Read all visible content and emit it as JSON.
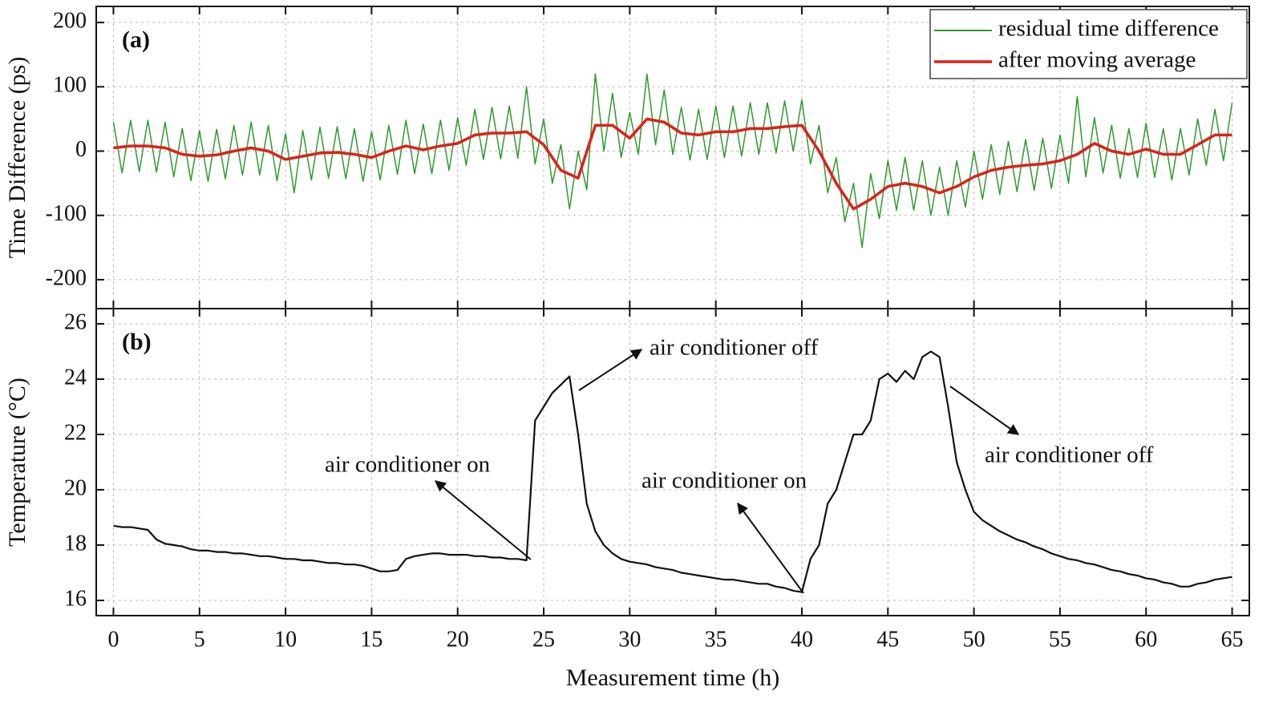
{
  "chart_data": [
    {
      "type": "line",
      "label": "(a)",
      "ylabel": "Time Difference (ps)",
      "xlim": [
        -1,
        66
      ],
      "ylim": [
        -245,
        225
      ],
      "yticks": [
        -200,
        -100,
        0,
        100,
        200
      ],
      "grid": true,
      "legend": "upper right",
      "x": [
        0,
        0.5,
        1,
        1.5,
        2,
        2.5,
        3,
        3.5,
        4,
        4.5,
        5,
        5.5,
        6,
        6.5,
        7,
        7.5,
        8,
        8.5,
        9,
        9.5,
        10,
        10.5,
        11,
        11.5,
        12,
        12.5,
        13,
        13.5,
        14,
        14.5,
        15,
        15.5,
        16,
        16.5,
        17,
        17.5,
        18,
        18.5,
        19,
        19.5,
        20,
        20.5,
        21,
        21.5,
        22,
        22.5,
        23,
        23.5,
        24,
        24.5,
        25,
        25.5,
        26,
        26.5,
        27,
        27.5,
        28,
        28.5,
        29,
        29.5,
        30,
        30.5,
        31,
        31.5,
        32,
        32.5,
        33,
        33.5,
        34,
        34.5,
        35,
        35.5,
        36,
        36.5,
        37,
        37.5,
        38,
        38.5,
        39,
        39.5,
        40,
        40.5,
        41,
        41.5,
        42,
        42.5,
        43,
        43.5,
        44,
        44.5,
        45,
        45.5,
        46,
        46.5,
        47,
        47.5,
        48,
        48.5,
        49,
        49.5,
        50,
        50.5,
        51,
        51.5,
        52,
        52.5,
        53,
        53.5,
        54,
        54.5,
        55,
        55.5,
        56,
        56.5,
        57,
        57.5,
        58,
        58.5,
        59,
        59.5,
        60,
        60.5,
        61,
        61.5,
        62,
        62.5,
        63,
        63.5,
        64,
        64.5,
        65
      ],
      "series": [
        {
          "name": "residual time difference",
          "color": "#2e9a2e",
          "values": [
            45,
            -34,
            48,
            -32,
            48,
            -33,
            45,
            -40,
            35,
            -46,
            32,
            -47,
            34,
            -43,
            40,
            -37,
            45,
            -37,
            40,
            -46,
            27,
            -65,
            32,
            -45,
            37,
            -42,
            38,
            -43,
            35,
            -47,
            30,
            -45,
            40,
            -36,
            48,
            -35,
            42,
            -35,
            48,
            -30,
            52,
            -22,
            65,
            -13,
            68,
            -12,
            70,
            -11,
            100,
            -20,
            50,
            -50,
            10,
            -90,
            0,
            -60,
            120,
            0,
            90,
            -10,
            60,
            -5,
            120,
            10,
            95,
            -5,
            68,
            -14,
            65,
            -13,
            70,
            -10,
            70,
            -8,
            75,
            -5,
            75,
            -3,
            78,
            0,
            80,
            -20,
            40,
            -65,
            -10,
            -110,
            -50,
            -150,
            -35,
            -105,
            -15,
            -92,
            -10,
            -92,
            -15,
            -100,
            -25,
            -100,
            -15,
            -87,
            0,
            -75,
            10,
            -67,
            15,
            -63,
            18,
            -61,
            20,
            -58,
            25,
            -50,
            85,
            -40,
            52,
            -34,
            40,
            -42,
            35,
            -41,
            43,
            -41,
            35,
            -45,
            35,
            -37,
            50,
            -22,
            65,
            -15,
            75
          ]
        },
        {
          "name": "after moving average",
          "color": "#e0201b",
          "x": [
            0,
            1,
            2,
            3,
            4,
            5,
            6,
            7,
            8,
            9,
            10,
            11,
            12,
            13,
            14,
            15,
            16,
            17,
            18,
            19,
            20,
            21,
            22,
            23,
            24,
            25,
            26,
            27,
            28,
            29,
            30,
            31,
            32,
            33,
            34,
            35,
            36,
            37,
            38,
            39,
            40,
            41,
            42,
            43,
            44,
            45,
            46,
            47,
            48,
            49,
            50,
            51,
            52,
            53,
            54,
            55,
            56,
            57,
            58,
            59,
            60,
            61,
            62,
            63,
            64,
            65
          ],
          "values": [
            5,
            8,
            8,
            5,
            -5,
            -8,
            -6,
            0,
            5,
            0,
            -13,
            -8,
            -3,
            -2,
            -5,
            -10,
            0,
            8,
            2,
            8,
            12,
            25,
            28,
            28,
            30,
            10,
            -30,
            -42,
            40,
            40,
            20,
            50,
            45,
            28,
            25,
            30,
            30,
            35,
            35,
            38,
            40,
            0,
            -50,
            -90,
            -75,
            -55,
            -50,
            -55,
            -65,
            -55,
            -40,
            -30,
            -25,
            -22,
            -20,
            -15,
            -5,
            12,
            0,
            -5,
            3,
            -5,
            -5,
            10,
            25,
            25
          ]
        }
      ]
    },
    {
      "type": "line",
      "label": "(b)",
      "ylabel": "Temperature (°C)",
      "xlabel": "Measurement time (h)",
      "xlim": [
        -1,
        66
      ],
      "xticks": [
        0,
        5,
        10,
        15,
        20,
        25,
        30,
        35,
        40,
        45,
        50,
        55,
        60,
        65
      ],
      "ylim": [
        15.45,
        26.55
      ],
      "yticks": [
        16,
        18,
        20,
        22,
        24,
        26
      ],
      "grid": true,
      "annotations": [
        "air conditioner on",
        "air conditioner off",
        "air conditioner on",
        "air conditioner off"
      ],
      "x": [
        0,
        0.5,
        1,
        1.5,
        2,
        2.5,
        3,
        3.5,
        4,
        4.5,
        5,
        5.5,
        6,
        6.5,
        7,
        7.5,
        8,
        8.5,
        9,
        9.5,
        10,
        10.5,
        11,
        11.5,
        12,
        12.5,
        13,
        13.5,
        14,
        14.5,
        15,
        15.5,
        16,
        16.5,
        17,
        17.5,
        18,
        18.5,
        19,
        19.5,
        20,
        20.5,
        21,
        21.5,
        22,
        22.5,
        23,
        23.5,
        24,
        24.5,
        25,
        25.5,
        26,
        26.5,
        27,
        27.5,
        28,
        28.5,
        29,
        29.5,
        30,
        30.5,
        31,
        31.5,
        32,
        32.5,
        33,
        33.5,
        34,
        34.5,
        35,
        35.5,
        36,
        36.5,
        37,
        37.5,
        38,
        38.5,
        39,
        39.5,
        40,
        40.5,
        41,
        41.5,
        42,
        42.5,
        43,
        43.5,
        44,
        44.5,
        45,
        45.5,
        46,
        46.5,
        47,
        47.5,
        48,
        48.5,
        49,
        49.5,
        50,
        50.5,
        51,
        51.5,
        52,
        52.5,
        53,
        53.5,
        54,
        54.5,
        55,
        55.5,
        56,
        56.5,
        57,
        57.5,
        58,
        58.5,
        59,
        59.5,
        60,
        60.5,
        61,
        61.5,
        62,
        62.5,
        63,
        63.5,
        64,
        64.5,
        65
      ],
      "color": "#111111",
      "values": [
        18.7,
        18.65,
        18.65,
        18.6,
        18.55,
        18.2,
        18.05,
        18.0,
        17.95,
        17.85,
        17.8,
        17.8,
        17.75,
        17.75,
        17.7,
        17.7,
        17.65,
        17.6,
        17.6,
        17.55,
        17.5,
        17.5,
        17.45,
        17.45,
        17.4,
        17.35,
        17.35,
        17.3,
        17.3,
        17.25,
        17.15,
        17.05,
        17.05,
        17.1,
        17.5,
        17.6,
        17.65,
        17.7,
        17.7,
        17.65,
        17.65,
        17.65,
        17.6,
        17.6,
        17.55,
        17.55,
        17.5,
        17.5,
        17.45,
        22.5,
        23.0,
        23.5,
        23.8,
        24.1,
        22.0,
        19.5,
        18.5,
        18.0,
        17.7,
        17.5,
        17.4,
        17.35,
        17.3,
        17.2,
        17.15,
        17.1,
        17.0,
        16.95,
        16.9,
        16.85,
        16.8,
        16.75,
        16.75,
        16.7,
        16.65,
        16.6,
        16.6,
        16.5,
        16.45,
        16.35,
        16.3,
        17.5,
        18.0,
        19.5,
        20.0,
        21.0,
        22.0,
        22.0,
        22.5,
        24.0,
        24.2,
        23.9,
        24.3,
        24.0,
        24.8,
        25.0,
        24.8,
        23.0,
        21.0,
        20.0,
        19.2,
        18.9,
        18.7,
        18.5,
        18.35,
        18.2,
        18.1,
        17.95,
        17.85,
        17.7,
        17.6,
        17.5,
        17.45,
        17.35,
        17.3,
        17.2,
        17.1,
        17.05,
        16.95,
        16.9,
        16.8,
        16.75,
        16.65,
        16.6,
        16.5,
        16.5,
        16.6,
        16.65,
        16.75,
        16.8,
        16.85
      ]
    }
  ]
}
